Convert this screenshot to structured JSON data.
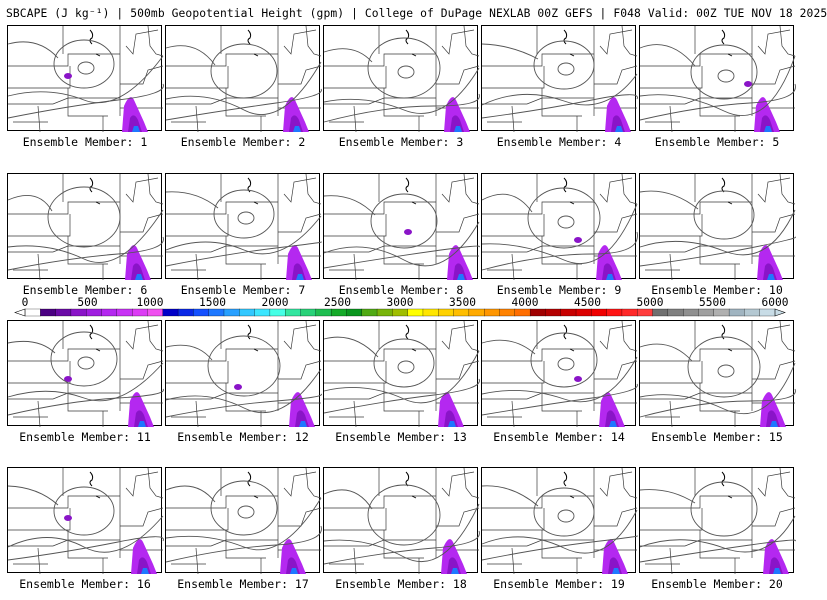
{
  "header": {
    "title": "SBCAPE (J kg⁻¹) | 500mb Geopotential Height (gpm) | College of DuPage NEXLAB 00Z GEFS | F048 Valid: 00Z TUE NOV 18 2025"
  },
  "panels": [
    {
      "label": "Ensemble Member: 1",
      "member": 1
    },
    {
      "label": "Ensemble Member: 2",
      "member": 2
    },
    {
      "label": "Ensemble Member: 3",
      "member": 3
    },
    {
      "label": "Ensemble Member: 4",
      "member": 4
    },
    {
      "label": "Ensemble Member: 5",
      "member": 5
    },
    {
      "label": "Ensemble Member: 6",
      "member": 6
    },
    {
      "label": "Ensemble Member: 7",
      "member": 7
    },
    {
      "label": "Ensemble Member: 8",
      "member": 8
    },
    {
      "label": "Ensemble Member: 9",
      "member": 9
    },
    {
      "label": "Ensemble Member: 10",
      "member": 10
    },
    {
      "label": "Ensemble Member: 11",
      "member": 11
    },
    {
      "label": "Ensemble Member: 12",
      "member": 12
    },
    {
      "label": "Ensemble Member: 13",
      "member": 13
    },
    {
      "label": "Ensemble Member: 14",
      "member": 14
    },
    {
      "label": "Ensemble Member: 15",
      "member": 15
    },
    {
      "label": "Ensemble Member: 16",
      "member": 16
    },
    {
      "label": "Ensemble Member: 17",
      "member": 17
    },
    {
      "label": "Ensemble Member: 18",
      "member": 18
    },
    {
      "label": "Ensemble Member: 19",
      "member": 19
    },
    {
      "label": "Ensemble Member: 20",
      "member": 20
    }
  ],
  "colorbar": {
    "ticks": [
      "0",
      "500",
      "1000",
      "1500",
      "2000",
      "2500",
      "3000",
      "3500",
      "4000",
      "4500",
      "5000",
      "5500",
      "6000"
    ],
    "tick_values": [
      0,
      500,
      1000,
      1500,
      2000,
      2500,
      3000,
      3500,
      4000,
      4500,
      5000,
      5500,
      6000
    ],
    "colors": [
      "#ffffff",
      "#4b0082",
      "#6a0aa6",
      "#8a14c8",
      "#a01ee0",
      "#b428f0",
      "#c832f5",
      "#dc3cf5",
      "#f050f0",
      "#0000c8",
      "#0a28e6",
      "#1450ff",
      "#1e78ff",
      "#28a0ff",
      "#32c8ff",
      "#3ce6ff",
      "#46ffe6",
      "#32e6a0",
      "#28d278",
      "#1ebe50",
      "#14aa28",
      "#0a961e",
      "#50aa14",
      "#78b40a",
      "#a0be00",
      "#ffff00",
      "#ffe600",
      "#ffd200",
      "#ffbe00",
      "#ffaa00",
      "#ff9600",
      "#ff8200",
      "#ff6e00",
      "#a00000",
      "#b40000",
      "#c80000",
      "#dc0000",
      "#f00000",
      "#ff1414",
      "#ff2828",
      "#ff3c3c",
      "#707070",
      "#808080",
      "#909090",
      "#a0a0a0",
      "#b0b0b0",
      "#a0b4c0",
      "#b4c8d2",
      "#c8dce6"
    ]
  }
}
